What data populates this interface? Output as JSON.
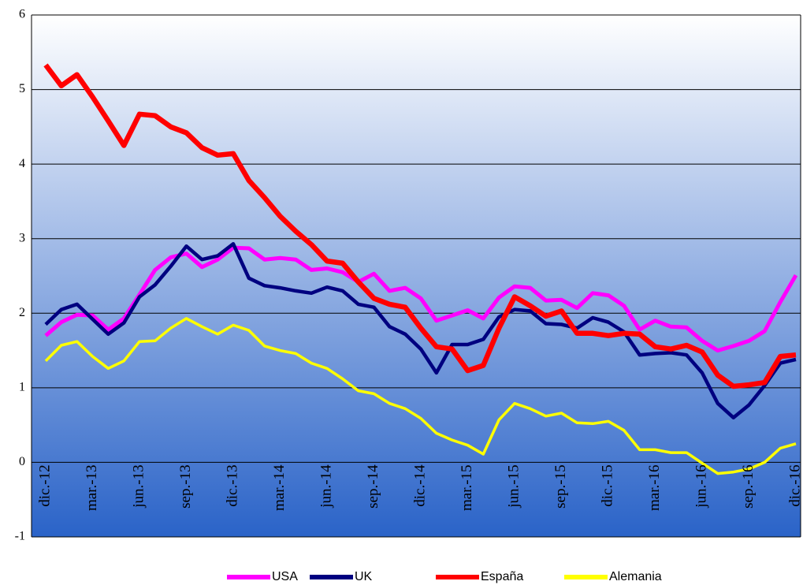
{
  "chart_data": {
    "type": "line",
    "categories": [
      "dic.-12",
      null,
      null,
      "mar.-13",
      null,
      null,
      "jun.-13",
      null,
      null,
      "sep.-13",
      null,
      null,
      "dic.-13",
      null,
      null,
      "mar.-14",
      null,
      null,
      "jun.-14",
      null,
      null,
      "sep.-14",
      null,
      null,
      "dic.-14",
      null,
      null,
      "mar.-15",
      null,
      null,
      "jun.-15",
      null,
      null,
      "sep.-15",
      null,
      null,
      "dic.-15",
      null,
      null,
      "mar.-16",
      null,
      null,
      "jun.-16",
      null,
      null,
      "sep.-16",
      null,
      null,
      "dic.-16"
    ],
    "series": [
      {
        "name": "USA",
        "color": "#ff00ff",
        "values": [
          1.7,
          1.88,
          1.98,
          1.97,
          1.78,
          1.93,
          2.25,
          2.58,
          2.75,
          2.8,
          2.62,
          2.72,
          2.88,
          2.87,
          2.72,
          2.74,
          2.72,
          2.58,
          2.6,
          2.55,
          2.42,
          2.53,
          2.3,
          2.34,
          2.2,
          1.9,
          1.97,
          2.04,
          1.93,
          2.21,
          2.36,
          2.34,
          2.17,
          2.18,
          2.07,
          2.27,
          2.24,
          2.1,
          1.78,
          1.9,
          1.82,
          1.81,
          1.63,
          1.5,
          1.56,
          1.63,
          1.76,
          2.15,
          2.51
        ]
      },
      {
        "name": "UK",
        "color": "#000080",
        "values": [
          1.85,
          2.05,
          2.12,
          1.92,
          1.72,
          1.87,
          2.22,
          2.38,
          2.63,
          2.9,
          2.72,
          2.77,
          2.93,
          2.47,
          2.37,
          2.34,
          2.3,
          2.27,
          2.35,
          2.3,
          2.12,
          2.08,
          1.82,
          1.72,
          1.52,
          1.2,
          1.58,
          1.58,
          1.65,
          1.95,
          2.05,
          2.03,
          1.86,
          1.85,
          1.8,
          1.94,
          1.88,
          1.75,
          1.44,
          1.46,
          1.47,
          1.44,
          1.2,
          0.79,
          0.6,
          0.77,
          1.03,
          1.33,
          1.38
        ]
      },
      {
        "name": "España",
        "color": "#ff0000",
        "values": [
          5.33,
          5.05,
          5.2,
          4.9,
          4.58,
          4.25,
          4.67,
          4.65,
          4.5,
          4.42,
          4.22,
          4.12,
          4.14,
          3.78,
          3.55,
          3.3,
          3.1,
          2.92,
          2.7,
          2.67,
          2.42,
          2.2,
          2.12,
          2.08,
          1.8,
          1.55,
          1.52,
          1.23,
          1.3,
          1.8,
          2.22,
          2.1,
          1.96,
          2.03,
          1.73,
          1.73,
          1.7,
          1.73,
          1.72,
          1.55,
          1.52,
          1.57,
          1.48,
          1.17,
          1.02,
          1.04,
          1.07,
          1.42,
          1.44
        ]
      },
      {
        "name": "Alemania",
        "color": "#ffff00",
        "values": [
          1.36,
          1.57,
          1.62,
          1.42,
          1.26,
          1.36,
          1.62,
          1.63,
          1.8,
          1.93,
          1.82,
          1.72,
          1.84,
          1.77,
          1.56,
          1.5,
          1.46,
          1.33,
          1.26,
          1.12,
          0.96,
          0.92,
          0.79,
          0.72,
          0.59,
          0.39,
          0.3,
          0.23,
          0.11,
          0.57,
          0.79,
          0.72,
          0.62,
          0.66,
          0.53,
          0.52,
          0.55,
          0.43,
          0.17,
          0.17,
          0.13,
          0.13,
          -0.01,
          -0.15,
          -0.13,
          -0.09,
          0.0,
          0.19,
          0.25
        ]
      }
    ],
    "ylim": [
      -1,
      6
    ],
    "yticks": [
      -1,
      0,
      1,
      2,
      3,
      4,
      5,
      6
    ],
    "grid": true,
    "legend": "bottom"
  }
}
